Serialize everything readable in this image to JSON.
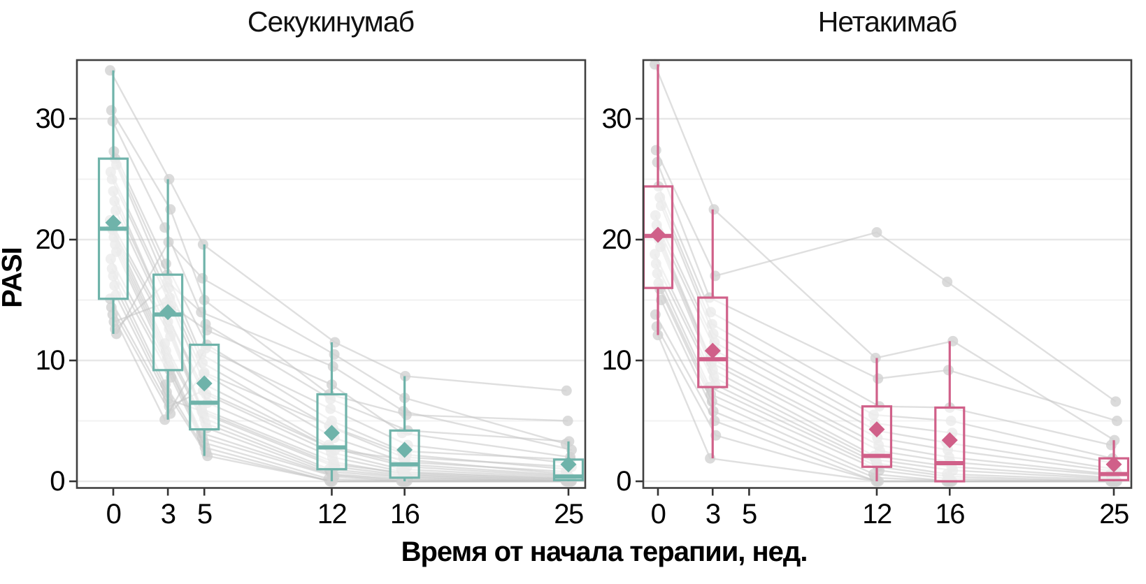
{
  "figure": {
    "y_axis_label": "PASI",
    "x_axis_label": "Время от начала терапии, нед.",
    "y_ticks": [
      0,
      10,
      20,
      30
    ],
    "y_minor_gridlines": [
      5,
      15,
      25
    ],
    "x_ticks": [
      0,
      3,
      5,
      12,
      16,
      25
    ],
    "background_color": "#ffffff",
    "panel_border_color": "#404040",
    "major_grid_color": "#e7e7e7",
    "minor_grid_color": "#f2f2f2",
    "trajectory_line_color": "#c4c4c4",
    "trajectory_dot_color": "#d2d2d2"
  },
  "chart_data": [
    {
      "type": "boxplot",
      "title": "Секукинумаб",
      "accent_color": "#6fb3aa",
      "xlabel_shared": "Время от начала терапии, нед.",
      "ylabel": "PASI",
      "ylim": [
        -0.6,
        35
      ],
      "weeks": [
        0,
        3,
        5,
        12,
        16,
        25
      ],
      "boxes": [
        {
          "week": 0,
          "whisker_low": 12.2,
          "q1": 15.1,
          "median": 20.9,
          "q3": 26.7,
          "whisker_high": 34.0,
          "mean": 21.4
        },
        {
          "week": 3,
          "whisker_low": 5.1,
          "q1": 9.2,
          "median": 13.8,
          "q3": 17.1,
          "whisker_high": 25.0,
          "mean": 14.0
        },
        {
          "week": 5,
          "whisker_low": 2.1,
          "q1": 4.3,
          "median": 6.5,
          "q3": 11.3,
          "whisker_high": 19.6,
          "mean": 8.1
        },
        {
          "week": 12,
          "whisker_low": 0.0,
          "q1": 1.0,
          "median": 2.8,
          "q3": 7.2,
          "whisker_high": 11.5,
          "mean": 4.0
        },
        {
          "week": 16,
          "whisker_low": 0.0,
          "q1": 0.3,
          "median": 1.4,
          "q3": 4.2,
          "whisker_high": 8.7,
          "mean": 2.6
        },
        {
          "week": 25,
          "whisker_low": 0.0,
          "q1": 0.1,
          "median": 0.4,
          "q3": 1.8,
          "whisker_high": 3.3,
          "mean": 1.4
        }
      ],
      "patients": [
        [
          34.0,
          25.0,
          19.6,
          11.5,
          8.7,
          7.5
        ],
        [
          30.7,
          22.5,
          15.0,
          7.2,
          5.5,
          5.0
        ],
        [
          29.8,
          21.0,
          13.0,
          6.8,
          4.2,
          3.3
        ],
        [
          27.3,
          18.0,
          11.3,
          5.0,
          2.5,
          1.8
        ],
        [
          26.7,
          17.1,
          10.5,
          4.4,
          2.0,
          1.2
        ],
        [
          26.2,
          16.0,
          9.8,
          3.6,
          1.6,
          0.8
        ],
        [
          25.6,
          15.2,
          8.9,
          3.0,
          1.4,
          0.5
        ],
        [
          25.0,
          14.5,
          8.0,
          2.8,
          1.2,
          0.4
        ],
        [
          24.0,
          14.0,
          7.2,
          2.4,
          1.0,
          0.3
        ],
        [
          23.2,
          13.8,
          6.5,
          2.0,
          0.8,
          0.2
        ],
        [
          22.4,
          13.2,
          6.0,
          1.6,
          0.6,
          0.1
        ],
        [
          21.6,
          12.6,
          5.6,
          1.2,
          0.5,
          0.1
        ],
        [
          21.0,
          12.0,
          5.2,
          1.0,
          0.4,
          0.0
        ],
        [
          20.8,
          11.4,
          4.8,
          0.8,
          0.3,
          0.0
        ],
        [
          20.2,
          10.8,
          4.4,
          0.6,
          0.2,
          0.0
        ],
        [
          19.6,
          10.2,
          4.0,
          0.5,
          0.1,
          0.0
        ],
        [
          19.0,
          9.6,
          3.6,
          0.4,
          0.0,
          0.0
        ],
        [
          18.4,
          9.2,
          3.2,
          0.2,
          0.0,
          0.0
        ],
        [
          17.6,
          8.6,
          2.8,
          0.0,
          0.0,
          0.0
        ],
        [
          17.0,
          8.0,
          2.4,
          0.0,
          0.0,
          0.0
        ],
        [
          16.2,
          7.4,
          2.1,
          0.0,
          0.0,
          0.0
        ],
        [
          15.4,
          6.8,
          5.8,
          1.4,
          0.7,
          0.2
        ],
        [
          15.1,
          6.2,
          7.5,
          2.6,
          1.8,
          0.6
        ],
        [
          14.4,
          5.6,
          9.0,
          4.6,
          2.2,
          1.0
        ],
        [
          13.8,
          5.1,
          11.0,
          6.0,
          3.0,
          1.5
        ],
        [
          13.2,
          14.8,
          12.5,
          8.0,
          4.0,
          2.0
        ],
        [
          12.6,
          16.5,
          14.0,
          9.5,
          5.8,
          2.6
        ],
        [
          12.2,
          19.8,
          16.8,
          10.5,
          6.9,
          3.1
        ]
      ]
    },
    {
      "type": "boxplot",
      "title": "Нетакимаб",
      "accent_color": "#d06089",
      "xlabel_shared": "Время от начала терапии, нед.",
      "ylabel": "PASI",
      "ylim": [
        -0.6,
        35
      ],
      "weeks": [
        0,
        3,
        12,
        16,
        25
      ],
      "boxes": [
        {
          "week": 0,
          "whisker_low": 12.1,
          "q1": 16.0,
          "median": 20.3,
          "q3": 24.4,
          "whisker_high": 34.5,
          "mean": 20.4
        },
        {
          "week": 3,
          "whisker_low": 1.9,
          "q1": 7.8,
          "median": 10.1,
          "q3": 15.2,
          "whisker_high": 22.5,
          "mean": 10.8
        },
        {
          "week": 12,
          "whisker_low": 0.0,
          "q1": 1.2,
          "median": 2.1,
          "q3": 6.2,
          "whisker_high": 10.2,
          "mean": 4.3
        },
        {
          "week": 16,
          "whisker_low": 0.0,
          "q1": 0.0,
          "median": 1.5,
          "q3": 6.1,
          "whisker_high": 11.6,
          "mean": 3.4
        },
        {
          "week": 25,
          "whisker_low": 0.0,
          "q1": 0.1,
          "median": 0.6,
          "q3": 1.9,
          "whisker_high": 3.4,
          "mean": 1.4
        }
      ],
      "patients": [
        [
          34.5,
          22.5,
          10.2,
          11.6,
          3.4
        ],
        [
          27.4,
          17.0,
          20.6,
          16.5,
          6.6
        ],
        [
          26.4,
          15.2,
          8.5,
          9.2,
          5.0
        ],
        [
          24.4,
          14.0,
          6.2,
          6.1,
          3.0
        ],
        [
          23.5,
          13.0,
          5.5,
          5.0,
          1.9
        ],
        [
          22.8,
          12.2,
          4.8,
          4.0,
          1.5
        ],
        [
          22.0,
          11.5,
          4.2,
          3.2,
          1.0
        ],
        [
          21.2,
          10.8,
          3.6,
          2.6,
          0.8
        ],
        [
          20.6,
          10.2,
          3.0,
          2.0,
          0.6
        ],
        [
          20.0,
          9.8,
          2.5,
          1.6,
          0.5
        ],
        [
          19.4,
          9.2,
          2.1,
          1.2,
          0.3
        ],
        [
          18.8,
          8.6,
          1.8,
          0.9,
          0.2
        ],
        [
          18.0,
          8.0,
          1.5,
          0.6,
          0.1
        ],
        [
          17.2,
          7.8,
          1.2,
          0.4,
          0.0
        ],
        [
          16.4,
          7.2,
          0.9,
          0.2,
          0.0
        ],
        [
          15.9,
          6.6,
          0.6,
          0.0,
          0.0
        ],
        [
          15.0,
          5.8,
          0.3,
          0.0,
          0.0
        ],
        [
          13.8,
          5.0,
          0.0,
          0.0,
          0.0
        ],
        [
          12.8,
          3.8,
          0.0,
          0.0,
          0.0
        ],
        [
          12.1,
          1.9,
          0.0,
          0.0,
          0.0
        ]
      ]
    }
  ]
}
